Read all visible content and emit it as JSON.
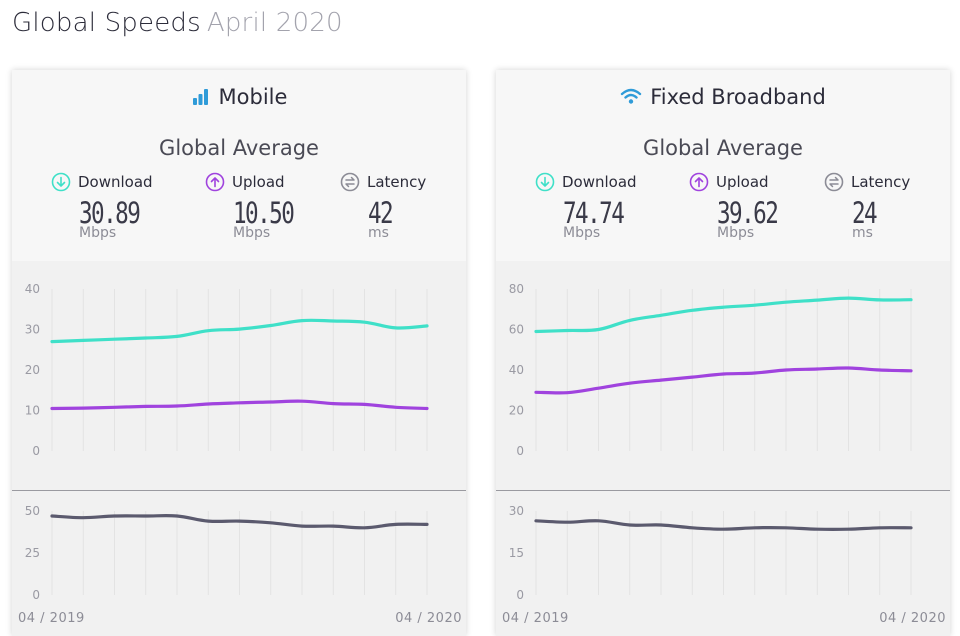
{
  "header": {
    "title": "Global Speeds",
    "date": "April 2020"
  },
  "colors": {
    "download": "#3fe0c8",
    "upload": "#a043de",
    "latency": "#5b5a6e",
    "title_icon": "#2f9bd8"
  },
  "panels": [
    {
      "title": "Mobile",
      "title_icon": "signal-bars-icon",
      "subtitle": "Global Average",
      "metrics": [
        {
          "label": "Download",
          "value": "30.89",
          "unit": "Mbps",
          "icon": "download-arrow-icon"
        },
        {
          "label": "Upload",
          "value": "10.50",
          "unit": "Mbps",
          "icon": "upload-arrow-icon"
        },
        {
          "label": "Latency",
          "value": "42",
          "unit": "ms",
          "icon": "latency-arrows-icon"
        }
      ],
      "x_start_label": "04 / 2019",
      "x_end_label": "04 / 2020"
    },
    {
      "title": "Fixed Broadband",
      "title_icon": "wifi-icon",
      "subtitle": "Global Average",
      "metrics": [
        {
          "label": "Download",
          "value": "74.74",
          "unit": "Mbps",
          "icon": "download-arrow-icon"
        },
        {
          "label": "Upload",
          "value": "39.62",
          "unit": "Mbps",
          "icon": "upload-arrow-icon"
        },
        {
          "label": "Latency",
          "value": "24",
          "unit": "ms",
          "icon": "latency-arrows-icon"
        }
      ],
      "x_start_label": "04 / 2019",
      "x_end_label": "04 / 2020"
    }
  ],
  "chart_data": [
    {
      "type": "line",
      "title": "Mobile",
      "x": [
        "04/2019",
        "05/2019",
        "06/2019",
        "07/2019",
        "08/2019",
        "09/2019",
        "10/2019",
        "11/2019",
        "12/2019",
        "01/2020",
        "02/2020",
        "03/2020",
        "04/2020"
      ],
      "series": [
        {
          "name": "Download",
          "values": [
            27.0,
            27.3,
            27.6,
            27.9,
            28.3,
            29.7,
            30.1,
            31.0,
            32.2,
            32.1,
            31.8,
            30.4,
            30.89
          ]
        },
        {
          "name": "Upload",
          "values": [
            10.5,
            10.6,
            10.8,
            11.0,
            11.1,
            11.6,
            11.9,
            12.1,
            12.3,
            11.7,
            11.5,
            10.8,
            10.5
          ]
        }
      ],
      "ylim": [
        0,
        40
      ],
      "yticks": [
        0,
        10,
        20,
        30,
        40
      ],
      "latency": {
        "name": "Latency",
        "values": [
          47,
          46,
          47,
          47,
          47,
          44,
          44,
          43,
          41,
          41,
          40,
          42,
          42
        ],
        "ylim": [
          0,
          50
        ],
        "yticks": [
          0,
          25,
          50
        ]
      },
      "grid": "vertical"
    },
    {
      "type": "line",
      "title": "Fixed Broadband",
      "x": [
        "04/2019",
        "05/2019",
        "06/2019",
        "07/2019",
        "08/2019",
        "09/2019",
        "10/2019",
        "11/2019",
        "12/2019",
        "01/2020",
        "02/2020",
        "03/2020",
        "04/2020"
      ],
      "series": [
        {
          "name": "Download",
          "values": [
            59.0,
            59.5,
            60.0,
            64.5,
            67.0,
            69.5,
            71.0,
            72.0,
            73.5,
            74.5,
            75.5,
            74.6,
            74.74
          ]
        },
        {
          "name": "Upload",
          "values": [
            29.0,
            28.8,
            31.0,
            33.5,
            35.0,
            36.5,
            38.0,
            38.5,
            40.0,
            40.5,
            41.0,
            40.0,
            39.62
          ]
        }
      ],
      "ylim": [
        0,
        80
      ],
      "yticks": [
        0,
        20,
        40,
        60,
        80
      ],
      "latency": {
        "name": "Latency",
        "values": [
          26.5,
          26,
          26.5,
          25,
          25,
          24,
          23.5,
          24,
          24,
          23.5,
          23.5,
          24,
          24
        ],
        "ylim": [
          0,
          30
        ],
        "yticks": [
          0,
          15,
          30
        ]
      },
      "grid": "vertical"
    }
  ]
}
